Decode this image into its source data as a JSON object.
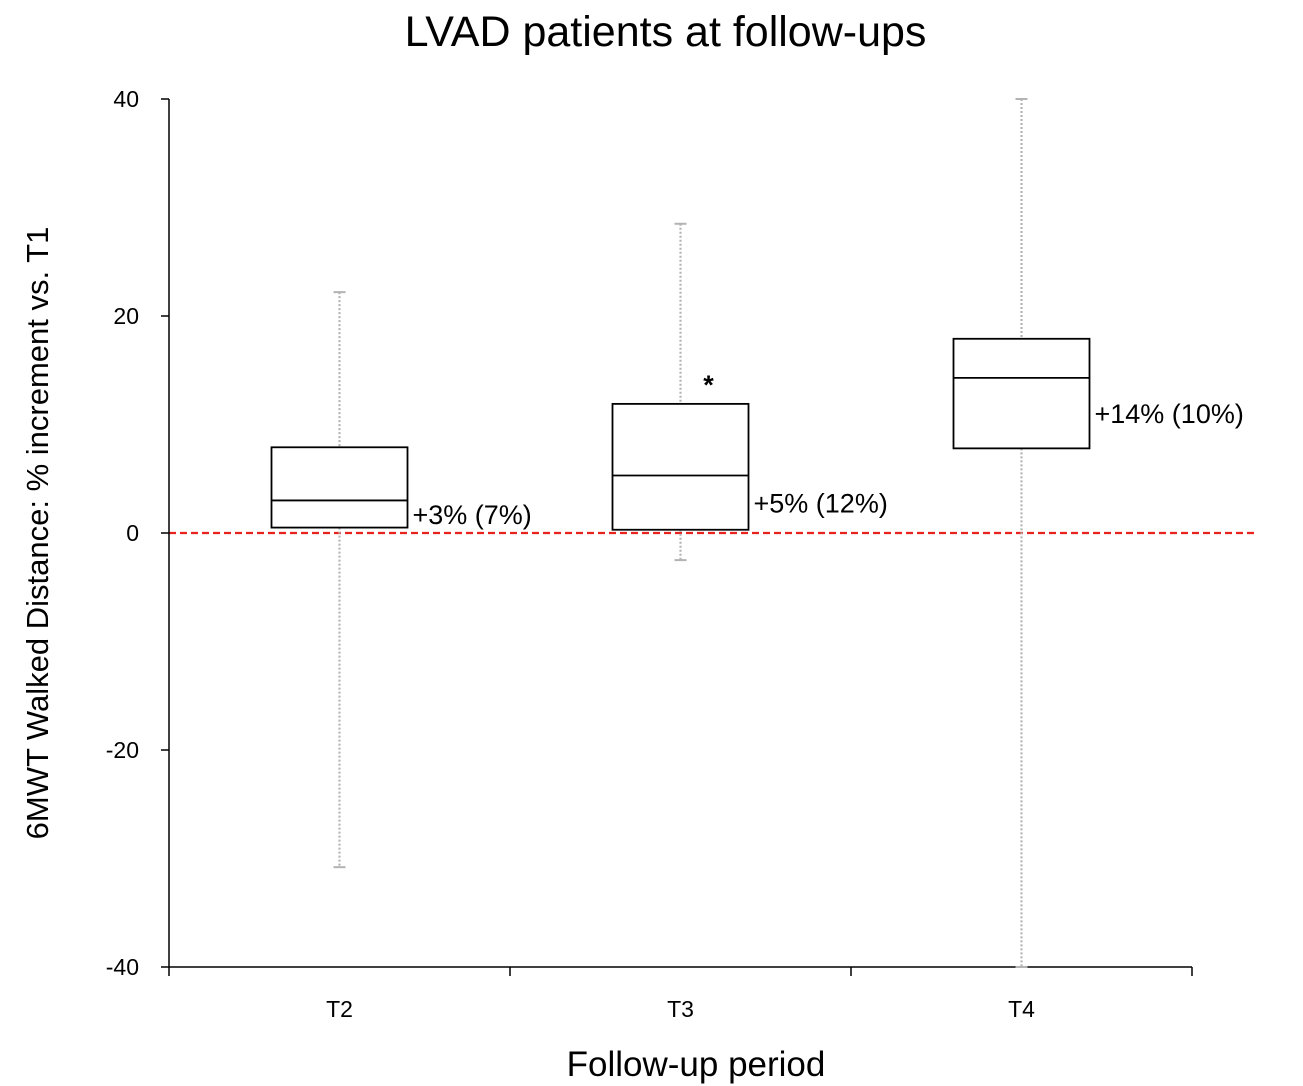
{
  "chart_data": {
    "type": "box",
    "title": "LVAD patients at follow-ups",
    "xlabel": "Follow-up period",
    "ylabel": "6MWT Walked Distance: % increment vs. T1",
    "ylim": [
      -40,
      40
    ],
    "yticks": [
      {
        "value": 40,
        "label": "40"
      },
      {
        "value": 20,
        "label": "20"
      },
      {
        "value": 0,
        "label": "0"
      },
      {
        "value": -20,
        "label": "-20"
      },
      {
        "value": -40,
        "label": "-40"
      }
    ],
    "categories": [
      "T2",
      "T3",
      "T4"
    ],
    "boxes": [
      {
        "category": "T2",
        "min": -30.8,
        "q1": 0.5,
        "median": 3.0,
        "q3": 7.9,
        "max": 22.2,
        "label": "+3% (7%)",
        "marker": ""
      },
      {
        "category": "T3",
        "min": -2.5,
        "q1": 0.3,
        "median": 5.3,
        "q3": 11.9,
        "max": 28.5,
        "label": "+5% (12%)",
        "marker": "*"
      },
      {
        "category": "T4",
        "min": -40,
        "q1": 7.8,
        "median": 14.3,
        "q3": 17.9,
        "max": 40,
        "label": "+14% (10%)",
        "marker": ""
      }
    ],
    "reference_line": {
      "value": 0,
      "color": "#e8231f",
      "style": "dashed"
    },
    "whisker_color": "#b3b3b3",
    "grid": false
  }
}
